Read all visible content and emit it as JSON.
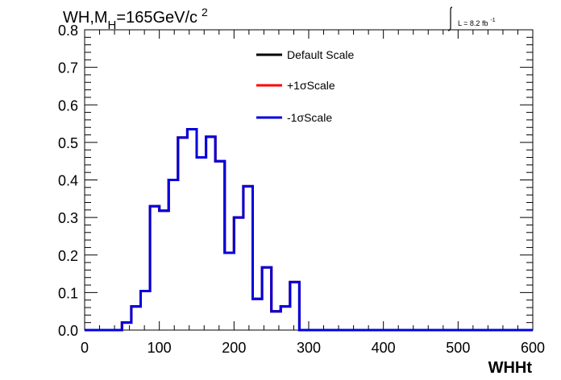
{
  "chart_data": {
    "type": "line",
    "title": "WH,M",
    "title_sub": "H",
    "title_rest": "=165GeV/c",
    "title_sup": "2",
    "lumi_label": "L = 8.2 fb",
    "lumi_sup": "-1",
    "xlabel": "WHHt",
    "ylabel": "",
    "xlim": [
      0,
      600
    ],
    "ylim": [
      0,
      0.8
    ],
    "xticks": [
      0,
      100,
      200,
      300,
      400,
      500,
      600
    ],
    "xtick_labels": [
      "0",
      "100",
      "200",
      "300",
      "400",
      "500",
      "600"
    ],
    "yticks": [
      0.0,
      0.1,
      0.2,
      0.3,
      0.4,
      0.5,
      0.6,
      0.7,
      0.8
    ],
    "ytick_labels": [
      "0.0",
      "0.1",
      "0.2",
      "0.3",
      "0.4",
      "0.5",
      "0.6",
      "0.7",
      "0.8"
    ],
    "bin_edges": [
      0,
      12.5,
      25,
      37.5,
      50,
      62.5,
      75,
      87.5,
      100,
      112.5,
      125,
      137.5,
      150,
      162.5,
      175,
      187.5,
      200,
      212.5,
      225,
      237.5,
      250,
      262.5,
      275,
      287.5,
      300,
      312.5,
      325,
      337.5,
      350,
      362.5,
      375,
      387.5,
      400,
      412.5,
      425,
      437.5,
      450,
      462.5,
      475,
      487.5,
      500,
      512.5,
      525,
      537.5,
      550,
      562.5,
      575,
      587.5,
      600
    ],
    "series": [
      {
        "name": "Default Scale",
        "color": "#000000",
        "values": [
          0,
          0,
          0,
          0,
          0.02,
          0.063,
          0.104,
          0.33,
          0.318,
          0.4,
          0.513,
          0.535,
          0.46,
          0.515,
          0.45,
          0.206,
          0.3,
          0.383,
          0.083,
          0.167,
          0.05,
          0.063,
          0.128,
          0,
          0,
          0,
          0,
          0,
          0,
          0,
          0,
          0,
          0,
          0,
          0,
          0,
          0,
          0,
          0,
          0,
          0,
          0,
          0,
          0,
          0,
          0,
          0,
          0
        ]
      },
      {
        "name": "+1σScale",
        "color": "#ff0000",
        "values": [
          0,
          0,
          0,
          0,
          0.02,
          0.063,
          0.104,
          0.33,
          0.318,
          0.4,
          0.513,
          0.535,
          0.46,
          0.515,
          0.45,
          0.206,
          0.3,
          0.383,
          0.083,
          0.167,
          0.05,
          0.063,
          0.128,
          0,
          0,
          0,
          0,
          0,
          0,
          0,
          0,
          0,
          0,
          0,
          0,
          0,
          0,
          0,
          0,
          0,
          0,
          0,
          0,
          0,
          0,
          0,
          0,
          0
        ]
      },
      {
        "name": "-1σScale",
        "color": "#0000dd",
        "values": [
          0,
          0,
          0,
          0,
          0.02,
          0.063,
          0.104,
          0.33,
          0.318,
          0.4,
          0.513,
          0.535,
          0.46,
          0.515,
          0.45,
          0.206,
          0.3,
          0.383,
          0.083,
          0.167,
          0.05,
          0.063,
          0.128,
          0,
          0,
          0,
          0,
          0,
          0,
          0,
          0,
          0,
          0,
          0,
          0,
          0,
          0,
          0,
          0,
          0,
          0,
          0,
          0,
          0,
          0,
          0,
          0,
          0
        ]
      }
    ],
    "legend_placement": "top-center",
    "grid": false
  }
}
